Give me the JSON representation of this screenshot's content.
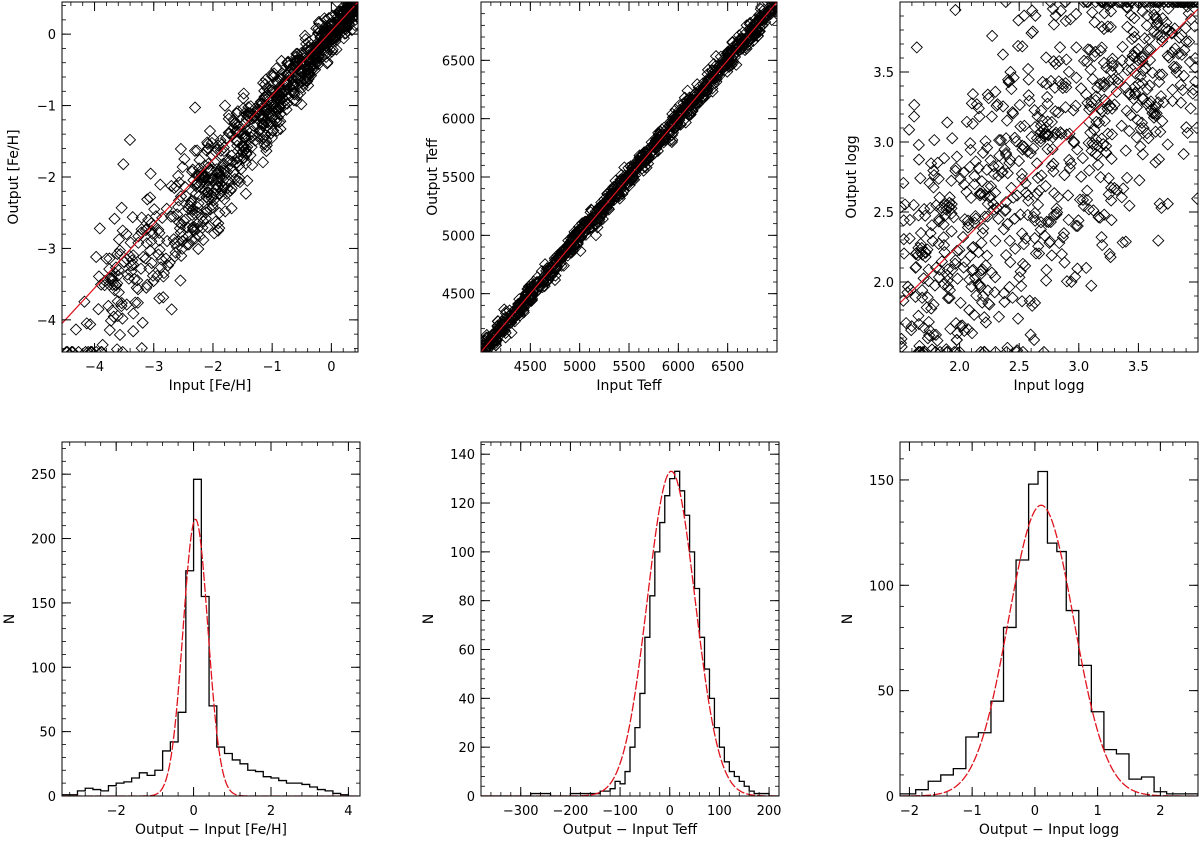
{
  "colors": {
    "axes": "#000000",
    "data": "#000000",
    "fit": "#e0141e"
  },
  "chart_data": [
    {
      "id": "feh-scatter",
      "type": "scatter",
      "title": "",
      "xlabel": "Input [Fe/H]",
      "ylabel": "Output [Fe/H]",
      "xlim": [
        -4.55,
        0.45
      ],
      "ylim": [
        -4.45,
        0.45
      ],
      "xticks": [
        {
          "v": -4,
          "label": "−4"
        },
        {
          "v": -3,
          "label": "−3"
        },
        {
          "v": -2,
          "label": "−2"
        },
        {
          "v": -1,
          "label": "−1"
        },
        {
          "v": 0,
          "label": "0"
        }
      ],
      "yticks": [
        {
          "v": -4,
          "label": "−4"
        },
        {
          "v": -3,
          "label": "−3"
        },
        {
          "v": -2,
          "label": "−2"
        },
        {
          "v": -1,
          "label": "−1"
        },
        {
          "v": 0,
          "label": "0"
        }
      ],
      "fit_line": [
        [
          -4.55,
          -4.05
        ],
        [
          0.45,
          0.45
        ]
      ],
      "points_note": "approx. 1000 points scattered around the one-to-one relation; large scatter at low metallicity, a row of points clipped at the lower edge (-4.45)",
      "points_model": {
        "n": 900,
        "seed": 11,
        "spread_low": 0.9,
        "spread_high": 0.12,
        "edge_rows": [
          -4.45
        ]
      }
    },
    {
      "id": "teff-scatter",
      "type": "scatter",
      "title": "",
      "xlabel": "Input Teff",
      "ylabel": "Output Teff",
      "xlim": [
        4000,
        7000
      ],
      "ylim": [
        4000,
        7000
      ],
      "xticks": [
        {
          "v": 4500,
          "label": "4500"
        },
        {
          "v": 5000,
          "label": "5000"
        },
        {
          "v": 5500,
          "label": "5500"
        },
        {
          "v": 6000,
          "label": "6000"
        },
        {
          "v": 6500,
          "label": "6500"
        }
      ],
      "yticks": [
        {
          "v": 4500,
          "label": "4500"
        },
        {
          "v": 5000,
          "label": "5000"
        },
        {
          "v": 5500,
          "label": "5500"
        },
        {
          "v": 6000,
          "label": "6000"
        },
        {
          "v": 6500,
          "label": "6500"
        }
      ],
      "fit_line": [
        [
          4000,
          4000
        ],
        [
          7000,
          7000
        ]
      ],
      "points_note": "approx. 1000 points tightly along the one-to-one line, scatter about 40 K",
      "points_model": {
        "n": 1000,
        "seed": 23,
        "spread": 45
      }
    },
    {
      "id": "logg-scatter",
      "type": "scatter",
      "title": "",
      "xlabel": "Input logg",
      "ylabel": "Output logg",
      "xlim": [
        1.5,
        4.0
      ],
      "ylim": [
        1.5,
        4.0
      ],
      "xticks": [
        {
          "v": 2.0,
          "label": "2.0"
        },
        {
          "v": 2.5,
          "label": "2.5"
        },
        {
          "v": 3.0,
          "label": "3.0"
        },
        {
          "v": 3.5,
          "label": "3.5"
        }
      ],
      "yticks": [
        {
          "v": 2.0,
          "label": "2.0"
        },
        {
          "v": 2.5,
          "label": "2.5"
        },
        {
          "v": 3.0,
          "label": "3.0"
        },
        {
          "v": 3.5,
          "label": "3.5"
        }
      ],
      "fit_line": [
        [
          1.5,
          1.85
        ],
        [
          4.0,
          3.95
        ]
      ],
      "points_note": "approx. 1000 points with large scatter, rows of points clipped at the top and bottom edges",
      "points_model": {
        "n": 800,
        "seed": 37,
        "spread": 0.55,
        "edge_rows": [
          1.5,
          4.0
        ]
      }
    },
    {
      "id": "feh-hist",
      "type": "histogram",
      "title": "",
      "xlabel": "Output − Input [Fe/H]",
      "ylabel": "N",
      "xlim": [
        -3.4,
        4.3
      ],
      "ylim": [
        0,
        275
      ],
      "xticks": [
        {
          "v": -2,
          "label": "−2"
        },
        {
          "v": 0,
          "label": "0"
        },
        {
          "v": 2,
          "label": "2"
        },
        {
          "v": 4,
          "label": "4"
        }
      ],
      "yticks": [
        {
          "v": 0,
          "label": "0"
        },
        {
          "v": 50,
          "label": "50"
        },
        {
          "v": 100,
          "label": "100"
        },
        {
          "v": 150,
          "label": "150"
        },
        {
          "v": 200,
          "label": "200"
        },
        {
          "v": 250,
          "label": "250"
        }
      ],
      "bin_edges": [
        -3.4,
        -3.0,
        -2.8,
        -2.6,
        -2.4,
        -2.2,
        -2.0,
        -1.8,
        -1.6,
        -1.4,
        -1.2,
        -1.0,
        -0.8,
        -0.6,
        -0.4,
        -0.2,
        0.0,
        0.2,
        0.4,
        0.6,
        0.8,
        1.0,
        1.2,
        1.4,
        1.6,
        1.8,
        2.0,
        2.2,
        2.4,
        2.6,
        2.8,
        3.0,
        3.2,
        3.4,
        3.6,
        3.8,
        4.0
      ],
      "counts": [
        1,
        4,
        6,
        5,
        4,
        8,
        10,
        11,
        14,
        18,
        16,
        20,
        35,
        42,
        65,
        175,
        246,
        155,
        70,
        38,
        33,
        28,
        25,
        20,
        19,
        15,
        14,
        12,
        10,
        10,
        9,
        7,
        5,
        4,
        2,
        1
      ],
      "gaussian": {
        "amplitude": 215,
        "mean": 0.05,
        "sigma": 0.32
      }
    },
    {
      "id": "teff-hist",
      "type": "histogram",
      "title": "",
      "xlabel": "Output − Input Teff",
      "ylabel": "N",
      "xlim": [
        -380,
        220
      ],
      "ylim": [
        0,
        145
      ],
      "xticks": [
        {
          "v": -300,
          "label": "−300"
        },
        {
          "v": -200,
          "label": "−200"
        },
        {
          "v": -100,
          "label": "−100"
        },
        {
          "v": 0,
          "label": "0"
        },
        {
          "v": 100,
          "label": "100"
        },
        {
          "v": 200,
          "label": "200"
        }
      ],
      "yticks": [
        {
          "v": 0,
          "label": "0"
        },
        {
          "v": 20,
          "label": "20"
        },
        {
          "v": 40,
          "label": "40"
        },
        {
          "v": 60,
          "label": "60"
        },
        {
          "v": 80,
          "label": "80"
        },
        {
          "v": 100,
          "label": "100"
        },
        {
          "v": 120,
          "label": "120"
        },
        {
          "v": 140,
          "label": "140"
        }
      ],
      "bin_edges": [
        -380,
        -360,
        -340,
        -320,
        -300,
        -280,
        -260,
        -240,
        -220,
        -200,
        -180,
        -160,
        -140,
        -120,
        -110,
        -100,
        -90,
        -80,
        -70,
        -60,
        -50,
        -40,
        -30,
        -20,
        -10,
        0,
        10,
        20,
        30,
        40,
        50,
        60,
        70,
        80,
        90,
        100,
        110,
        120,
        130,
        140,
        150,
        160,
        170,
        180,
        190,
        200,
        210,
        220
      ],
      "counts": [
        0,
        0,
        0,
        0,
        0,
        1,
        1,
        0,
        0,
        1,
        1,
        1,
        2,
        3,
        6,
        5,
        10,
        20,
        28,
        42,
        65,
        82,
        100,
        112,
        123,
        130,
        133,
        125,
        115,
        100,
        85,
        65,
        52,
        40,
        28,
        20,
        14,
        10,
        8,
        6,
        4,
        2,
        1,
        1,
        1,
        0,
        0
      ],
      "gaussian": {
        "amplitude": 133,
        "mean": 3,
        "sigma": 48
      }
    },
    {
      "id": "logg-hist",
      "type": "histogram",
      "title": "",
      "xlabel": "Output − Input logg",
      "ylabel": "N",
      "xlim": [
        -2.15,
        2.6
      ],
      "ylim": [
        0,
        168
      ],
      "xticks": [
        {
          "v": -2,
          "label": "−2"
        },
        {
          "v": -1,
          "label": "−1"
        },
        {
          "v": 0,
          "label": "0"
        },
        {
          "v": 1,
          "label": "1"
        },
        {
          "v": 2,
          "label": "2"
        }
      ],
      "yticks": [
        {
          "v": 0,
          "label": "0"
        },
        {
          "v": 50,
          "label": "50"
        },
        {
          "v": 100,
          "label": "100"
        },
        {
          "v": 150,
          "label": "150"
        }
      ],
      "bin_edges": [
        -2.15,
        -1.9,
        -1.7,
        -1.5,
        -1.3,
        -1.1,
        -0.9,
        -0.7,
        -0.5,
        -0.3,
        -0.1,
        0.05,
        0.2,
        0.35,
        0.5,
        0.7,
        0.9,
        1.1,
        1.3,
        1.5,
        1.7,
        1.9,
        2.1,
        2.3,
        2.6
      ],
      "counts": [
        1,
        3,
        7,
        10,
        13,
        28,
        30,
        45,
        80,
        112,
        148,
        154,
        120,
        116,
        88,
        62,
        40,
        22,
        20,
        8,
        9,
        2,
        1,
        1
      ],
      "gaussian": {
        "amplitude": 138,
        "mean": 0.1,
        "sigma": 0.52
      }
    }
  ]
}
